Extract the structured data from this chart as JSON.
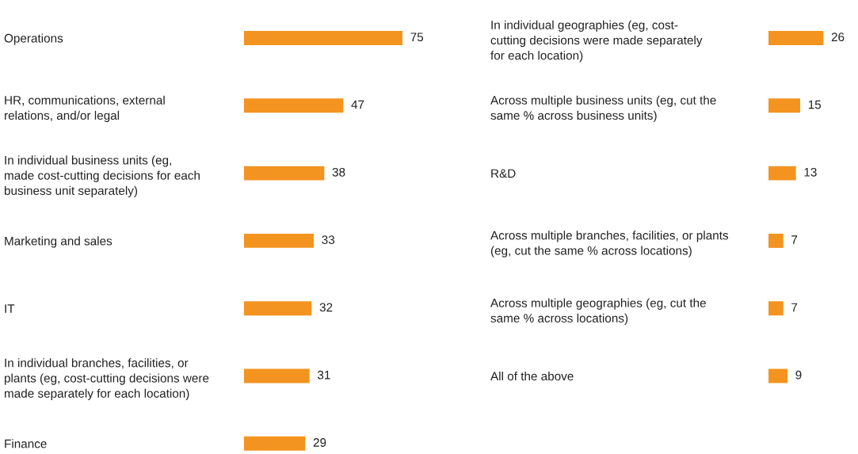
{
  "chart_data": [
    {
      "type": "bar",
      "orientation": "horizontal",
      "categories": [
        "Operations",
        "HR, communications, external\nrelations, and/or legal",
        "In individual business units (eg,\nmade cost-cutting decisions for each\nbusiness unit separately)",
        "Marketing and sales",
        "IT",
        "In individual branches, facilities, or\nplants (eg, cost-cutting decisions were\nmade separately for each location)",
        "Finance"
      ],
      "values": [
        75,
        47,
        38,
        33,
        32,
        31,
        29
      ],
      "color": "#f39420",
      "data_labels": true
    },
    {
      "type": "bar",
      "orientation": "horizontal",
      "categories": [
        "In individual geographies (eg, cost-\ncutting decisions were made separately\nfor each location)",
        "Across multiple business units (eg, cut the\nsame % across business units)",
        "R&D",
        "Across multiple branches, facilities, or plants\n(eg, cut the same % across locations)",
        "Across multiple geographies (eg, cut the\nsame % across locations)",
        "All of the above"
      ],
      "values": [
        26,
        15,
        13,
        7,
        7,
        9
      ],
      "color": "#f39420",
      "data_labels": true
    }
  ]
}
